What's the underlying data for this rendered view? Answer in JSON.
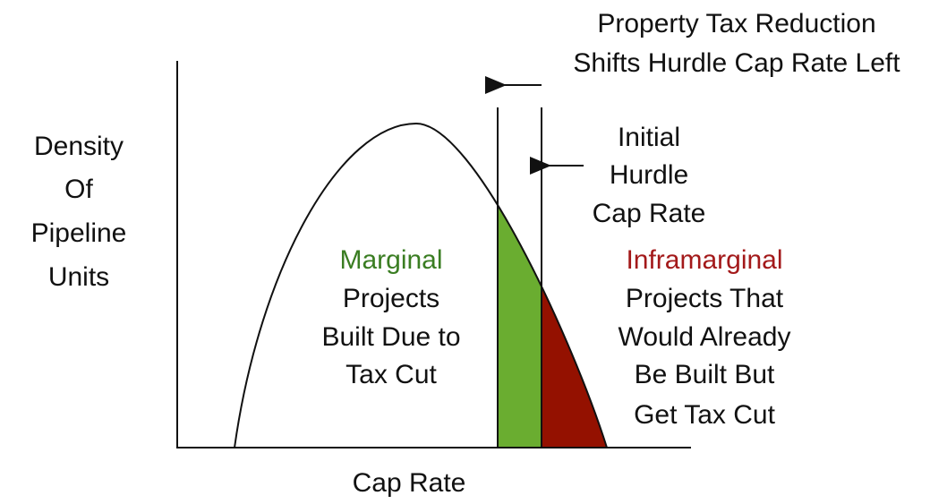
{
  "y_axis_label": [
    "Density",
    "Of",
    "Pipeline",
    "Units"
  ],
  "x_axis_label": "Cap Rate",
  "shift_annotation": [
    "Property Tax Reduction",
    "Shifts Hurdle Cap Rate Left"
  ],
  "initial_hurdle": [
    "Initial",
    "Hurdle",
    "Cap Rate"
  ],
  "marginal": {
    "title": "Marginal",
    "lines": [
      "Projects",
      "Built Due to",
      "Tax Cut"
    ]
  },
  "inframarginal": {
    "title": "Inframarginal",
    "lines": [
      "Projects That",
      "Would Already",
      "Be Built But",
      "Get Tax Cut"
    ]
  }
}
